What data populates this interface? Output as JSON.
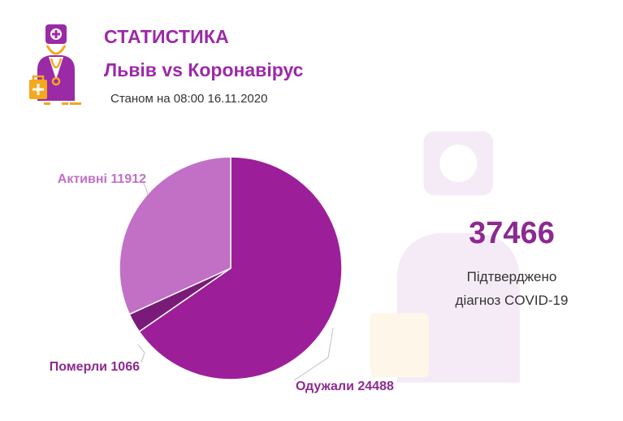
{
  "header": {
    "title": "СТАТИСТИКА",
    "subtitle": "Львів vs Коронавірус",
    "as_of": "Станом на 08:00 16.11.2020"
  },
  "summary": {
    "total": "37466",
    "caption_line1": "Підтверджено",
    "caption_line2": "діагноз COVID-19"
  },
  "icons": {
    "logo": "doctor-icon",
    "watermark": "doctor-watermark-icon"
  },
  "colors": {
    "brand": "#9b2aa6",
    "accent_orange": "#f4a81d"
  },
  "chart_data": {
    "type": "pie",
    "title": "",
    "slices": [
      {
        "label": "Одужали 24488",
        "value": 24488,
        "color": "#9c1f99"
      },
      {
        "label": "Померли 1066",
        "value": 1066,
        "color": "#7b1b79"
      },
      {
        "label": "Активні 11912",
        "value": 11912,
        "color": "#c170c6"
      }
    ],
    "label_colors": [
      "#8c2a91",
      "#8c2a91",
      "#c170c6"
    ],
    "start_angle_deg": 0,
    "direction": "clockwise"
  }
}
